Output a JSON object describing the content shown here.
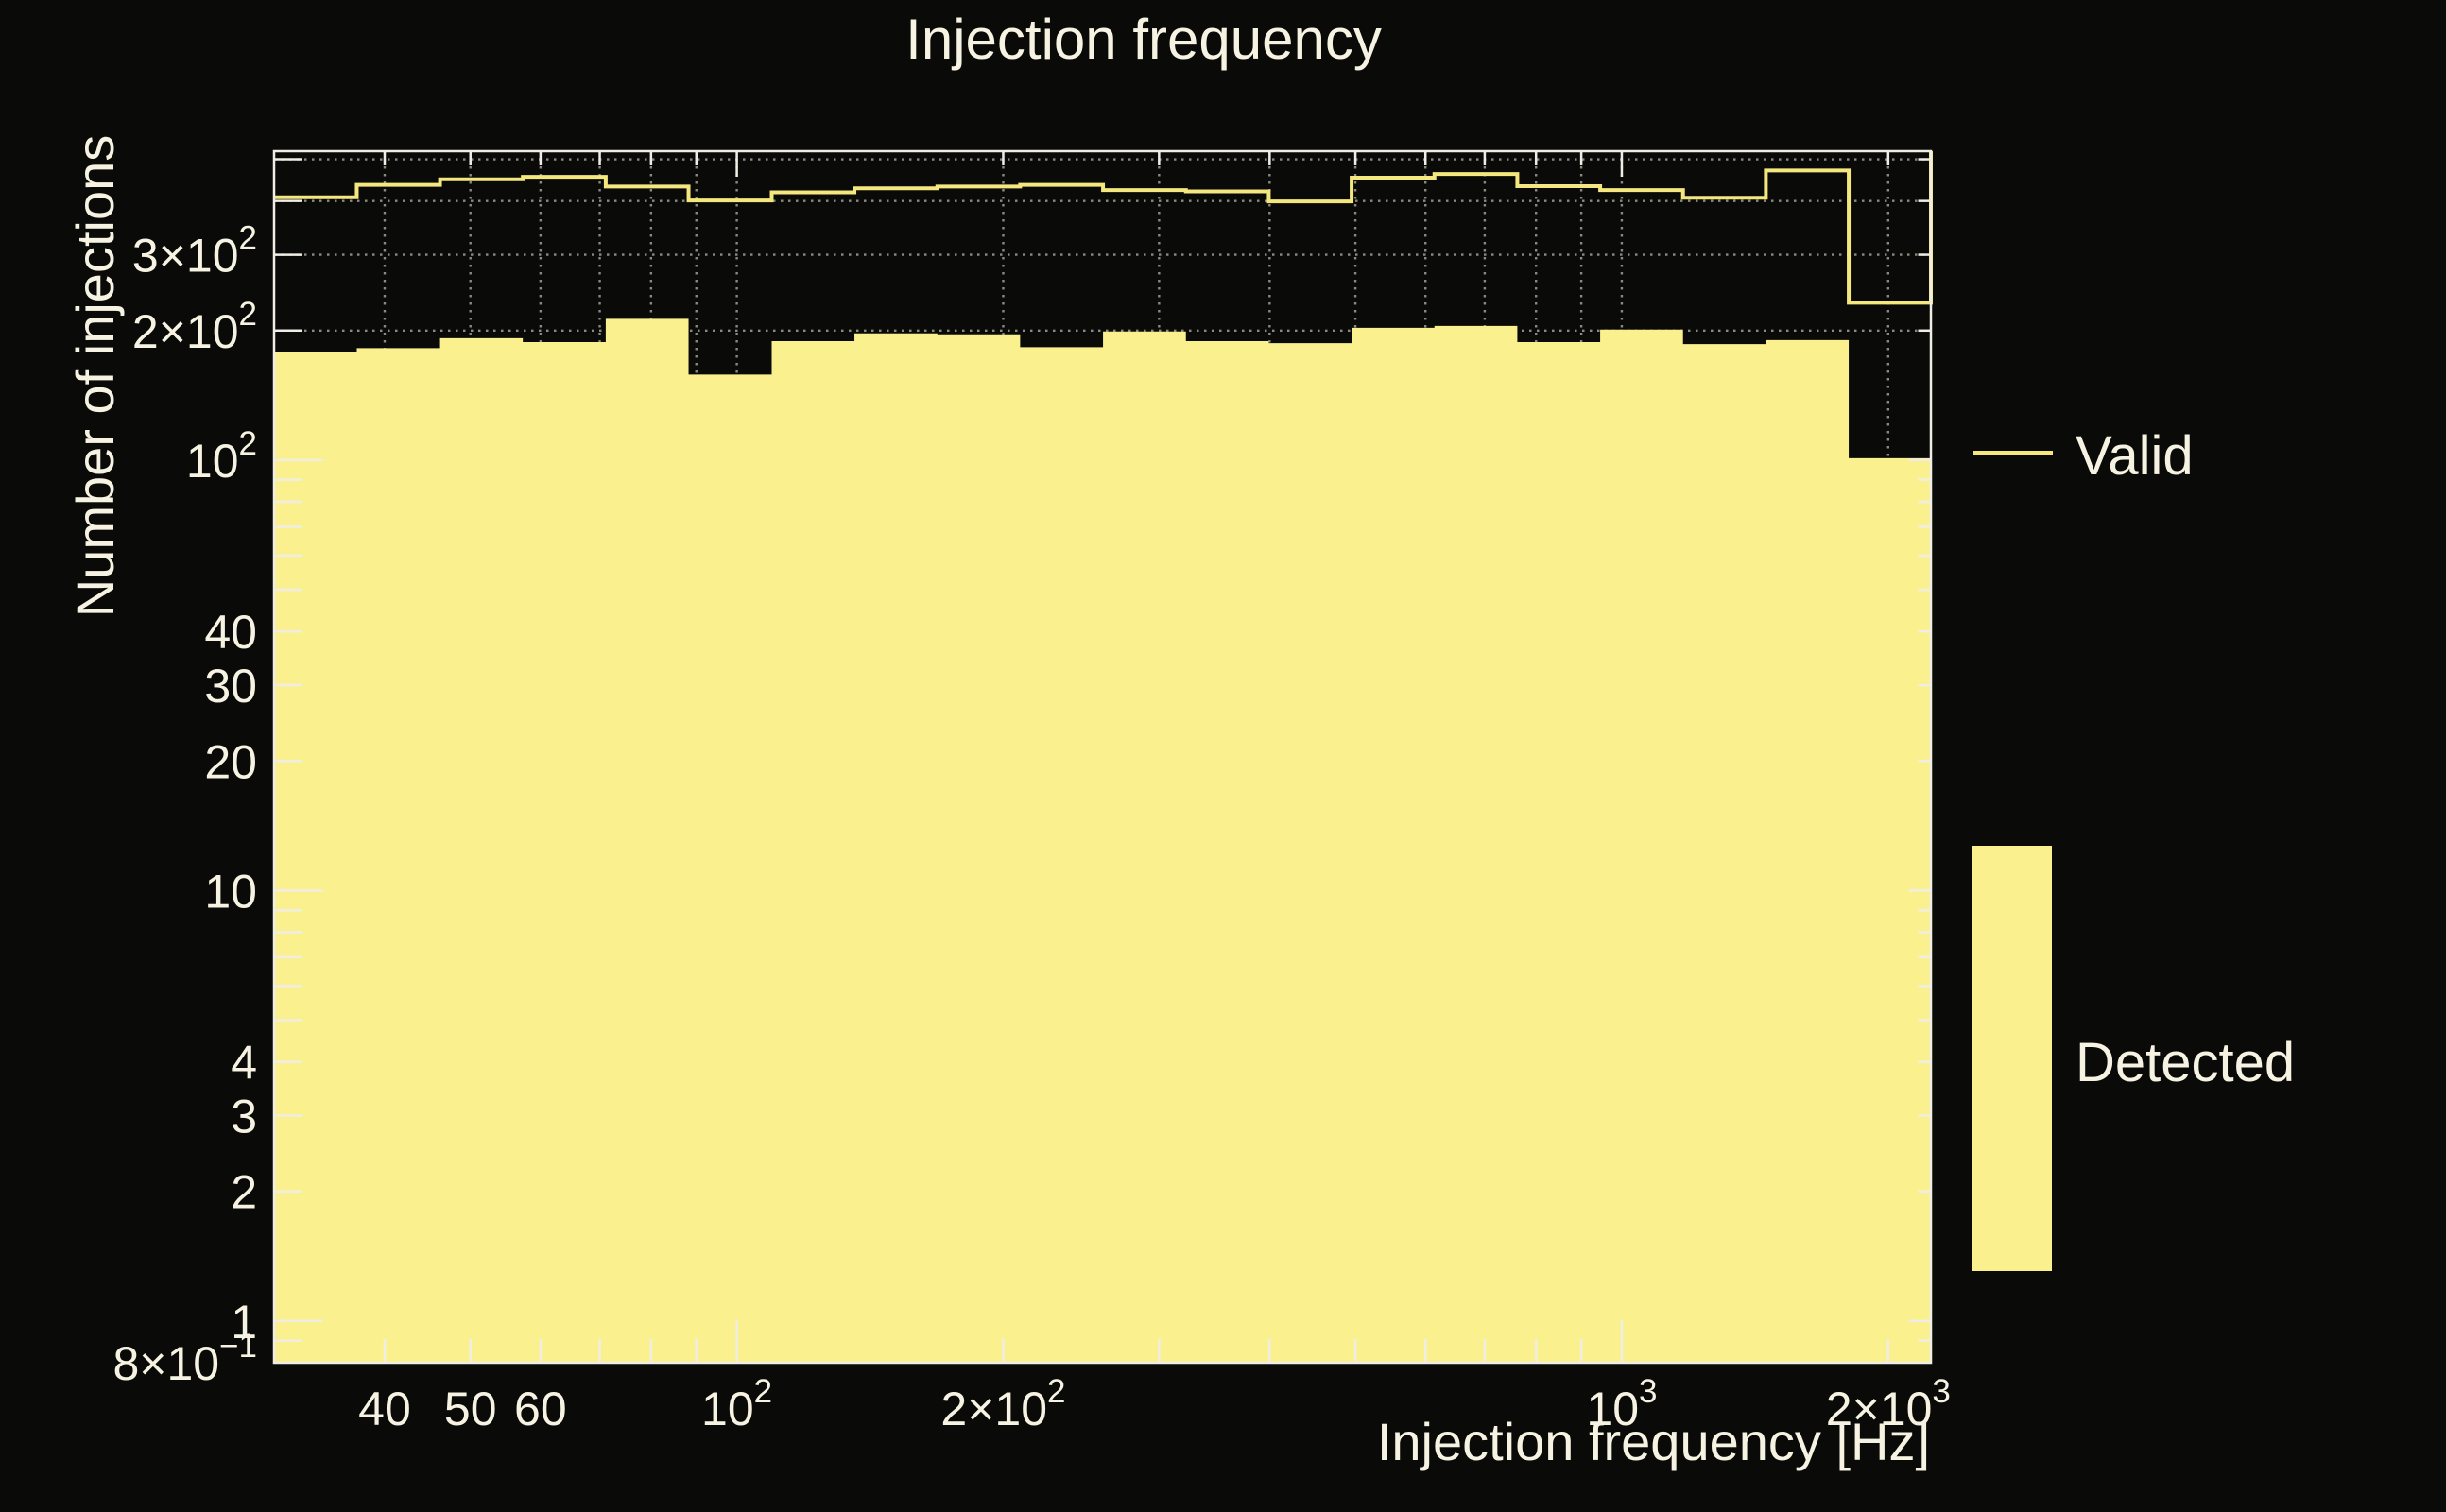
{
  "title": "Injection frequency",
  "colors": {
    "background": "#0a0a08",
    "text": "#f7f3e3",
    "frame": "#f0eee4",
    "grid": "#8a8a80",
    "valid_line": "#f4e77d",
    "detected_fill": "#faf08e"
  },
  "x_axis": {
    "title": "Injection frequency [Hz]",
    "scale": "log",
    "min_hz": 30,
    "max_hz": 2235,
    "ticks": [
      {
        "value": 40,
        "base": "40"
      },
      {
        "value": 50,
        "base": "50"
      },
      {
        "value": 60,
        "base": "60"
      },
      {
        "value": 70
      },
      {
        "value": 80
      },
      {
        "value": 90
      },
      {
        "value": 100,
        "base": "10",
        "sup": "2"
      },
      {
        "value": 200,
        "base": "2×10",
        "sup": "2"
      },
      {
        "value": 300
      },
      {
        "value": 400
      },
      {
        "value": 500
      },
      {
        "value": 600
      },
      {
        "value": 700
      },
      {
        "value": 800
      },
      {
        "value": 900
      },
      {
        "value": 1000,
        "base": "10",
        "sup": "3"
      },
      {
        "value": 2000,
        "base": "2×10",
        "sup": "3"
      }
    ]
  },
  "y_axis": {
    "title": "Number of injections",
    "scale": "log",
    "min": 0.8,
    "max": 522,
    "ticks": [
      {
        "value": 0.8,
        "base": "8×10",
        "sup": "−1"
      },
      {
        "value": 0.9
      },
      {
        "value": 1,
        "base": "1"
      },
      {
        "value": 2,
        "base": "2"
      },
      {
        "value": 3,
        "base": "3"
      },
      {
        "value": 4,
        "base": "4"
      },
      {
        "value": 5
      },
      {
        "value": 6
      },
      {
        "value": 7
      },
      {
        "value": 8
      },
      {
        "value": 9
      },
      {
        "value": 10,
        "base": "10"
      },
      {
        "value": 20,
        "base": "20"
      },
      {
        "value": 30,
        "base": "30"
      },
      {
        "value": 40,
        "base": "40"
      },
      {
        "value": 50
      },
      {
        "value": 60
      },
      {
        "value": 70
      },
      {
        "value": 80
      },
      {
        "value": 90
      },
      {
        "value": 100,
        "base": "10",
        "sup": "2"
      },
      {
        "value": 200,
        "base": "2×10",
        "sup": "2"
      },
      {
        "value": 300,
        "base": "3×10",
        "sup": "2"
      },
      {
        "value": 400
      },
      {
        "value": 500
      }
    ]
  },
  "legend": {
    "items": [
      {
        "label": "Valid",
        "swatch": "line"
      },
      {
        "label": "Detected",
        "swatch": "box"
      }
    ]
  },
  "chart_data": {
    "type": "step-histogram",
    "title": "Injection frequency",
    "xlabel": "Injection frequency [Hz]",
    "ylabel": "Number of injections",
    "x_scale": "log",
    "y_scale": "log",
    "xlim": [
      30,
      2235
    ],
    "ylim": [
      0.8,
      522
    ],
    "grid": "dotted",
    "legend_position": "right",
    "bin_edges_hz": [
      30.0,
      37.2,
      46.2,
      57.3,
      71.1,
      88.2,
      109.5,
      135.8,
      168.5,
      209.0,
      259.3,
      321.7,
      399.1,
      495.1,
      614.2,
      762.0,
      945.3,
      1172.7,
      1454.8,
      1804.8,
      2235.0
    ],
    "series": [
      {
        "name": "Valid",
        "style": "line",
        "color": "#f4e77d",
        "values": [
          408,
          436,
          449,
          455,
          432,
          401,
          419,
          428,
          432,
          436,
          424,
          421,
          399,
          453,
          462,
          433,
          424,
          407,
          471,
          232
        ]
      },
      {
        "name": "Detected",
        "style": "filled",
        "color": "#faf08e",
        "values": [
          178,
          182,
          192,
          188,
          213,
          158,
          189,
          197,
          196,
          183,
          199,
          189,
          187,
          203,
          205,
          188,
          201,
          186,
          190,
          101
        ]
      }
    ]
  }
}
